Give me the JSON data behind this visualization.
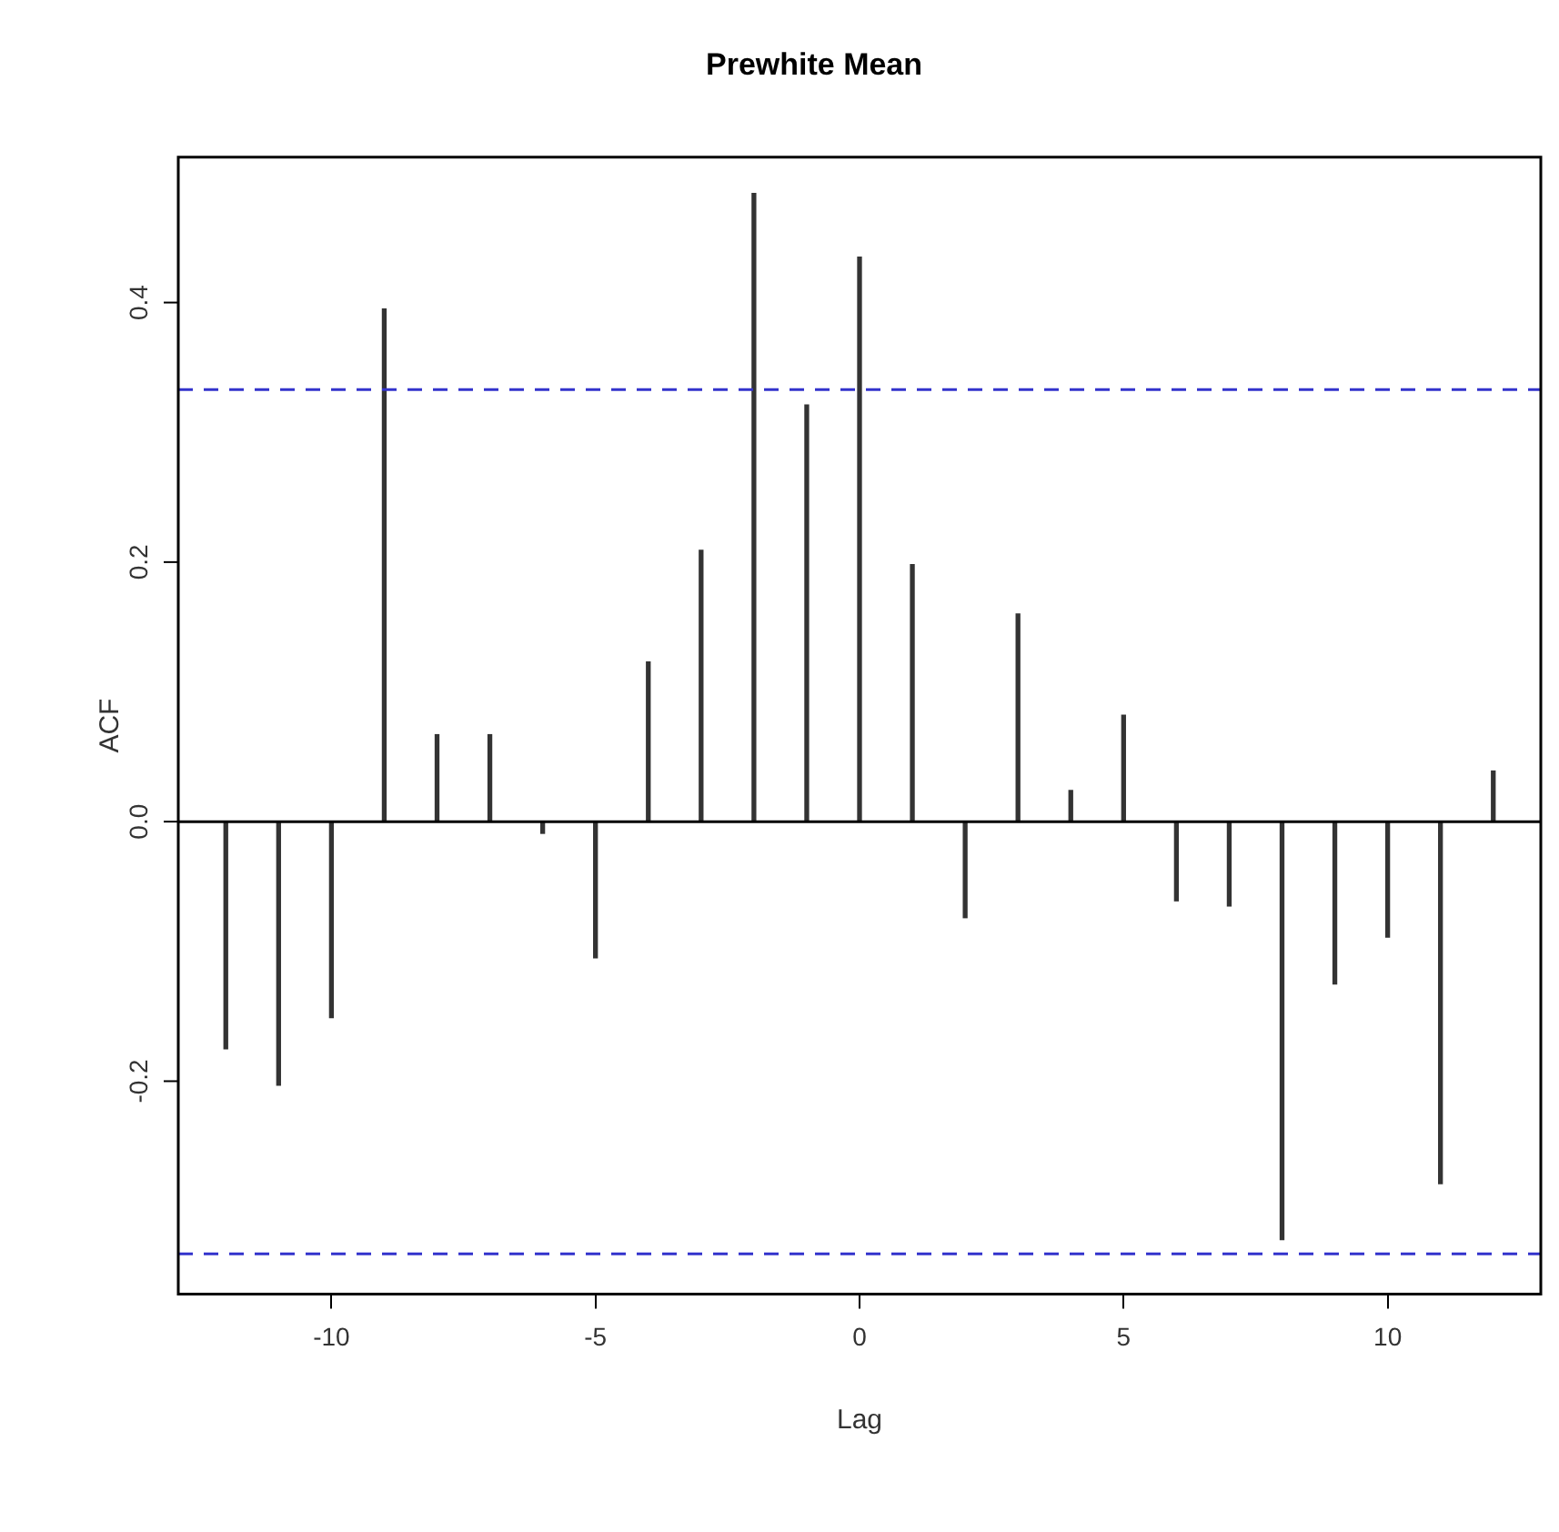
{
  "chart_data": {
    "type": "bar",
    "title": "Prewhite Mean",
    "xlabel": "Lag",
    "ylabel": "ACF",
    "x": [
      -12,
      -11,
      -10,
      -9,
      -8,
      -7,
      -6,
      -5,
      -4,
      -3,
      -2,
      -1,
      0,
      1,
      2,
      3,
      4,
      5,
      6,
      7,
      8,
      9,
      10,
      11,
      12
    ],
    "series": [
      {
        "color": "#333333",
        "values": [
          -0.175,
          -0.203,
          -0.151,
          0.395,
          0.067,
          0.067,
          -0.009,
          -0.105,
          0.123,
          0.209,
          0.484,
          0.321,
          0.435,
          0.198,
          -0.074,
          0.16,
          0.024,
          0.082,
          -0.061,
          -0.065,
          -0.322,
          -0.125,
          -0.089,
          -0.279,
          0.039
        ]
      }
    ],
    "xlim": [
      -12.9,
      12.9
    ],
    "ylim": [
      -0.364,
      0.512
    ],
    "xticks": [
      -10,
      -5,
      0,
      5,
      10
    ],
    "yticks": [
      {
        "value": -0.2,
        "label": "-0.2"
      },
      {
        "value": 0,
        "label": "0.0"
      },
      {
        "value": 0.2,
        "label": "0.2"
      },
      {
        "value": 0.4,
        "label": "0.4"
      }
    ],
    "ref_lines": [
      {
        "axis": "y",
        "value": 0.333,
        "color": "#3333cc",
        "line_style": "dashed"
      },
      {
        "axis": "y",
        "value": -0.333,
        "color": "#3333cc",
        "line_style": "dashed"
      },
      {
        "axis": "y",
        "value": 0,
        "color": "#000000",
        "line_style": "solid"
      }
    ],
    "grid": false,
    "legend": false
  }
}
